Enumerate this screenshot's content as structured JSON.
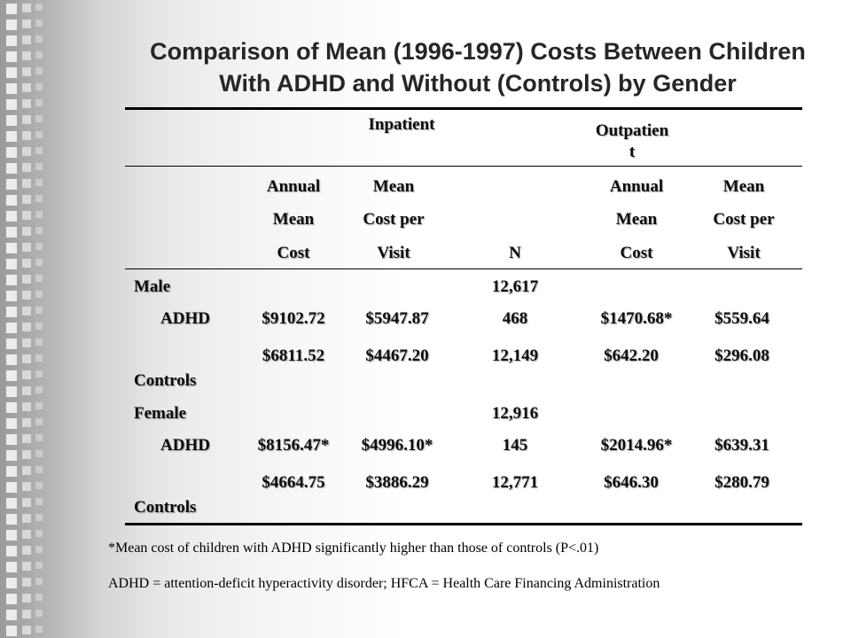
{
  "slide": {
    "title_line1": "Comparison of Mean (1996-1997) Costs Between Children",
    "title_line2": "With ADHD and Without (Controls) by Gender"
  },
  "table": {
    "group_headers": {
      "inpatient": "Inpatient",
      "outpatient_line1": "Outpatien",
      "outpatient_line2": "t"
    },
    "column_headers": {
      "inp_annual": [
        "Annual",
        "Mean",
        "Cost"
      ],
      "inp_mean": [
        "Mean",
        "Cost per",
        "Visit"
      ],
      "n": "N",
      "out_annual": [
        "Annual",
        "Mean",
        "Cost"
      ],
      "out_mean": [
        "Mean",
        "Cost per",
        "Visit"
      ]
    },
    "rows": [
      {
        "label": "Male",
        "inp_annual": "",
        "inp_mean": "",
        "n": "12,617",
        "out_annual": "",
        "out_mean": ""
      },
      {
        "label": "ADHD",
        "inp_annual": "$9102.72",
        "inp_mean": "$5947.87",
        "n": "468",
        "out_annual": "$1470.68*",
        "out_mean": "$559.64"
      },
      {
        "label": "Controls",
        "inp_annual": "$6811.52",
        "inp_mean": "$4467.20",
        "n": "12,149",
        "out_annual": "$642.20",
        "out_mean": "$296.08"
      },
      {
        "label": "Female",
        "inp_annual": "",
        "inp_mean": "",
        "n": "12,916",
        "out_annual": "",
        "out_mean": ""
      },
      {
        "label": "ADHD",
        "inp_annual": "$8156.47*",
        "inp_mean": "$4996.10*",
        "n": "145",
        "out_annual": "$2014.96*",
        "out_mean": "$639.31"
      },
      {
        "label": "Controls",
        "inp_annual": "$4664.75",
        "inp_mean": "$3886.29",
        "n": "12,771",
        "out_annual": "$646.30",
        "out_mean": "$280.79"
      }
    ]
  },
  "footnotes": {
    "significance": "*Mean cost of children with ADHD significantly higher than those of controls (P<.01)",
    "abbreviations": "ADHD = attention-deficit hyperactivity disorder; HFCA = Health Care Financing Administration"
  }
}
